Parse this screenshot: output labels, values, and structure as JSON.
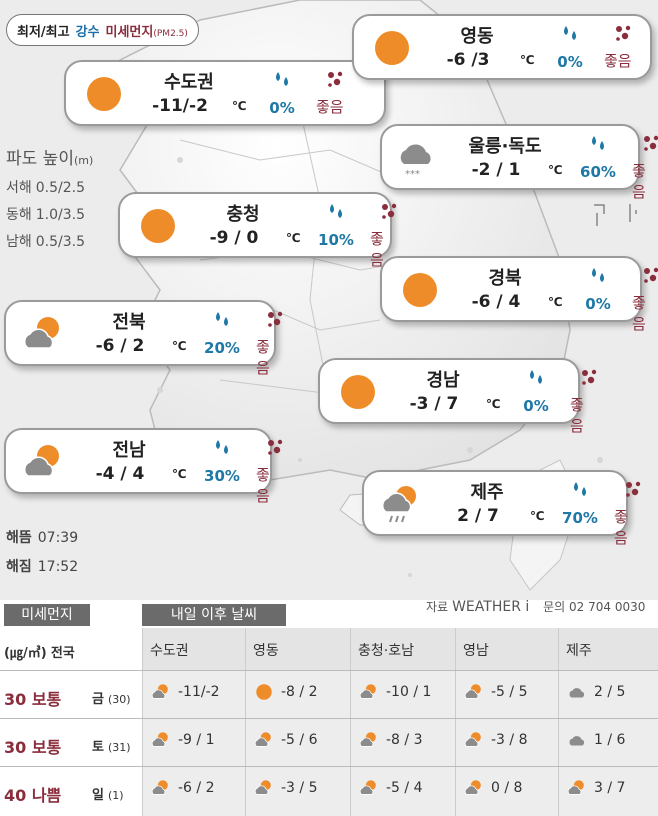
{
  "legend": {
    "item1": "최저/최고",
    "item2": "강수",
    "item3": "미세먼지",
    "item3_note": "(PM2.5)"
  },
  "wave": {
    "title": "파도 높이",
    "unit": "(m)",
    "rows": [
      {
        "sea": "서해",
        "height": "0.5/2.5"
      },
      {
        "sea": "동해",
        "height": "1.0/3.5"
      },
      {
        "sea": "남해",
        "height": "0.5/3.5"
      }
    ]
  },
  "sun": {
    "rise_label": "해뜸",
    "rise": "07:39",
    "set_label": "해짐",
    "set": "17:52"
  },
  "unit_c": "℃",
  "regions": [
    {
      "name": "수도권",
      "temp": "-11/-2",
      "rain": "0%",
      "dust": "좋음",
      "icon": "sun-icon"
    },
    {
      "name": "영동",
      "temp": "-6 /3",
      "rain": "0%",
      "dust": "좋음",
      "icon": "sun-icon"
    },
    {
      "name": "울릉·독도",
      "temp": "-2 / 1",
      "rain": "60%",
      "dust": "좋음",
      "icon": "cloud-snow-icon"
    },
    {
      "name": "충청",
      "temp": "-9 / 0",
      "rain": "10%",
      "dust": "좋음",
      "icon": "sun-icon"
    },
    {
      "name": "경북",
      "temp": "-6 / 4",
      "rain": "0%",
      "dust": "좋음",
      "icon": "sun-icon"
    },
    {
      "name": "전북",
      "temp": "-6 / 2",
      "rain": "20%",
      "dust": "좋음",
      "icon": "sun-cloud-icon"
    },
    {
      "name": "경남",
      "temp": "-3 / 7",
      "rain": "0%",
      "dust": "좋음",
      "icon": "sun-icon"
    },
    {
      "name": "전남",
      "temp": "-4 / 4",
      "rain": "30%",
      "dust": "좋음",
      "icon": "sun-cloud-icon"
    },
    {
      "name": "제주",
      "temp": "2 / 7",
      "rain": "70%",
      "dust": "좋음",
      "icon": "sun-cloud-rain-icon"
    }
  ],
  "panel": {
    "dust_header": "미세먼지",
    "forecast_header": "내일 이후 날씨",
    "source_label": "자료",
    "source": "WEATHER i",
    "contact_label": "문의",
    "contact": "02 704 0030",
    "dust_unit": "(㎍/㎥)",
    "dust_scope": "전국",
    "columns": [
      "수도권",
      "영동",
      "충청·호남",
      "영남",
      "제주"
    ],
    "rows": [
      {
        "dust": "30 보통",
        "day": "금",
        "date": "(30)",
        "cells": [
          {
            "icon": "sun-cloud-icon",
            "temp": "-11/-2"
          },
          {
            "icon": "sun-icon",
            "temp": "-8 / 2"
          },
          {
            "icon": "sun-cloud-icon",
            "temp": "-10 / 1"
          },
          {
            "icon": "sun-cloud-icon",
            "temp": "-5 / 5"
          },
          {
            "icon": "cloud-icon",
            "temp": "2 / 5"
          }
        ]
      },
      {
        "dust": "30 보통",
        "day": "토",
        "date": "(31)",
        "cells": [
          {
            "icon": "sun-cloud-icon",
            "temp": "-9 / 1"
          },
          {
            "icon": "sun-cloud-icon",
            "temp": "-5 / 6"
          },
          {
            "icon": "sun-cloud-icon",
            "temp": "-8 / 3"
          },
          {
            "icon": "sun-cloud-icon",
            "temp": "-3 / 8"
          },
          {
            "icon": "cloud-icon",
            "temp": "1 / 6"
          }
        ]
      },
      {
        "dust": "40 나쁨",
        "day": "일",
        "date": "(1)",
        "cells": [
          {
            "icon": "sun-cloud-icon",
            "temp": "-6 / 2"
          },
          {
            "icon": "sun-cloud-icon",
            "temp": "-3 / 5"
          },
          {
            "icon": "sun-cloud-icon",
            "temp": "-5 / 4"
          },
          {
            "icon": "sun-cloud-icon",
            "temp": "0 / 8"
          },
          {
            "icon": "sun-cloud-icon",
            "temp": "3 / 7"
          }
        ]
      }
    ]
  }
}
